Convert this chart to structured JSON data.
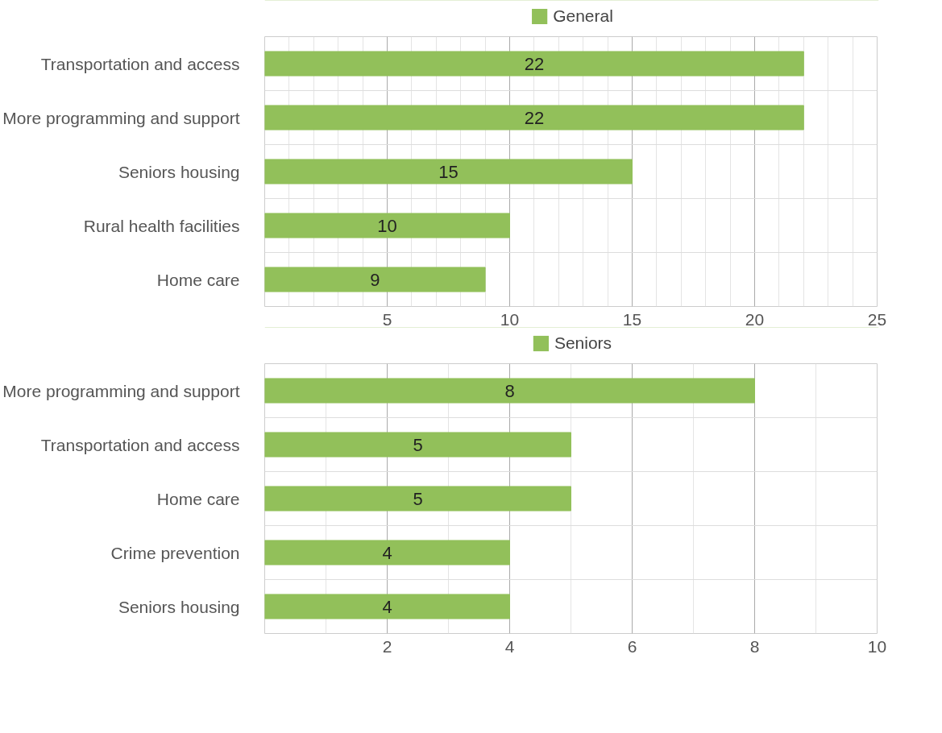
{
  "chart_data": [
    {
      "type": "bar",
      "orientation": "horizontal",
      "categories": [
        "Transportation and access",
        "More programming and support",
        "Seniors housing",
        "Rural health facilities",
        "Home care"
      ],
      "series": [
        {
          "name": "General",
          "color": "#92c05a",
          "values": [
            22,
            22,
            15,
            10,
            9
          ]
        }
      ],
      "xlim": [
        0,
        25
      ],
      "xticks": [
        {
          "value": 1,
          "label": null
        },
        {
          "value": 2,
          "label": null
        },
        {
          "value": 3,
          "label": null
        },
        {
          "value": 4,
          "label": null
        },
        5,
        {
          "value": 6,
          "label": null
        },
        {
          "value": 7,
          "label": null
        },
        {
          "value": 8,
          "label": null
        },
        {
          "value": 9,
          "label": null
        },
        10,
        {
          "value": 11,
          "label": null
        },
        {
          "value": 12,
          "label": null
        },
        {
          "value": 13,
          "label": null
        },
        {
          "value": 14,
          "label": null
        },
        15,
        {
          "value": 16,
          "label": null
        },
        {
          "value": 17,
          "label": null
        },
        {
          "value": 18,
          "label": null
        },
        {
          "value": 19,
          "label": null
        },
        20,
        {
          "value": 21,
          "label": null
        },
        {
          "value": 22,
          "label": null
        },
        {
          "value": 23,
          "label": null
        },
        {
          "value": 24,
          "label": null
        },
        25
      ],
      "grid": true,
      "legend": "top",
      "data_labels": true
    },
    {
      "type": "bar",
      "orientation": "horizontal",
      "categories": [
        "More programming and support",
        "Transportation and access",
        "Home care",
        "Crime prevention",
        "Seniors housing"
      ],
      "series": [
        {
          "name": "Seniors",
          "color": "#92c05a",
          "values": [
            8,
            5,
            5,
            4,
            4
          ]
        }
      ],
      "xlim": [
        0,
        10
      ],
      "xticks": [
        {
          "value": 1,
          "label": null
        },
        2,
        {
          "value": 3,
          "label": null
        },
        4,
        {
          "value": 5,
          "label": null
        },
        6,
        {
          "value": 7,
          "label": null
        },
        8,
        {
          "value": 9,
          "label": null
        },
        10
      ],
      "grid": true,
      "legend": "top",
      "data_labels": true
    }
  ]
}
